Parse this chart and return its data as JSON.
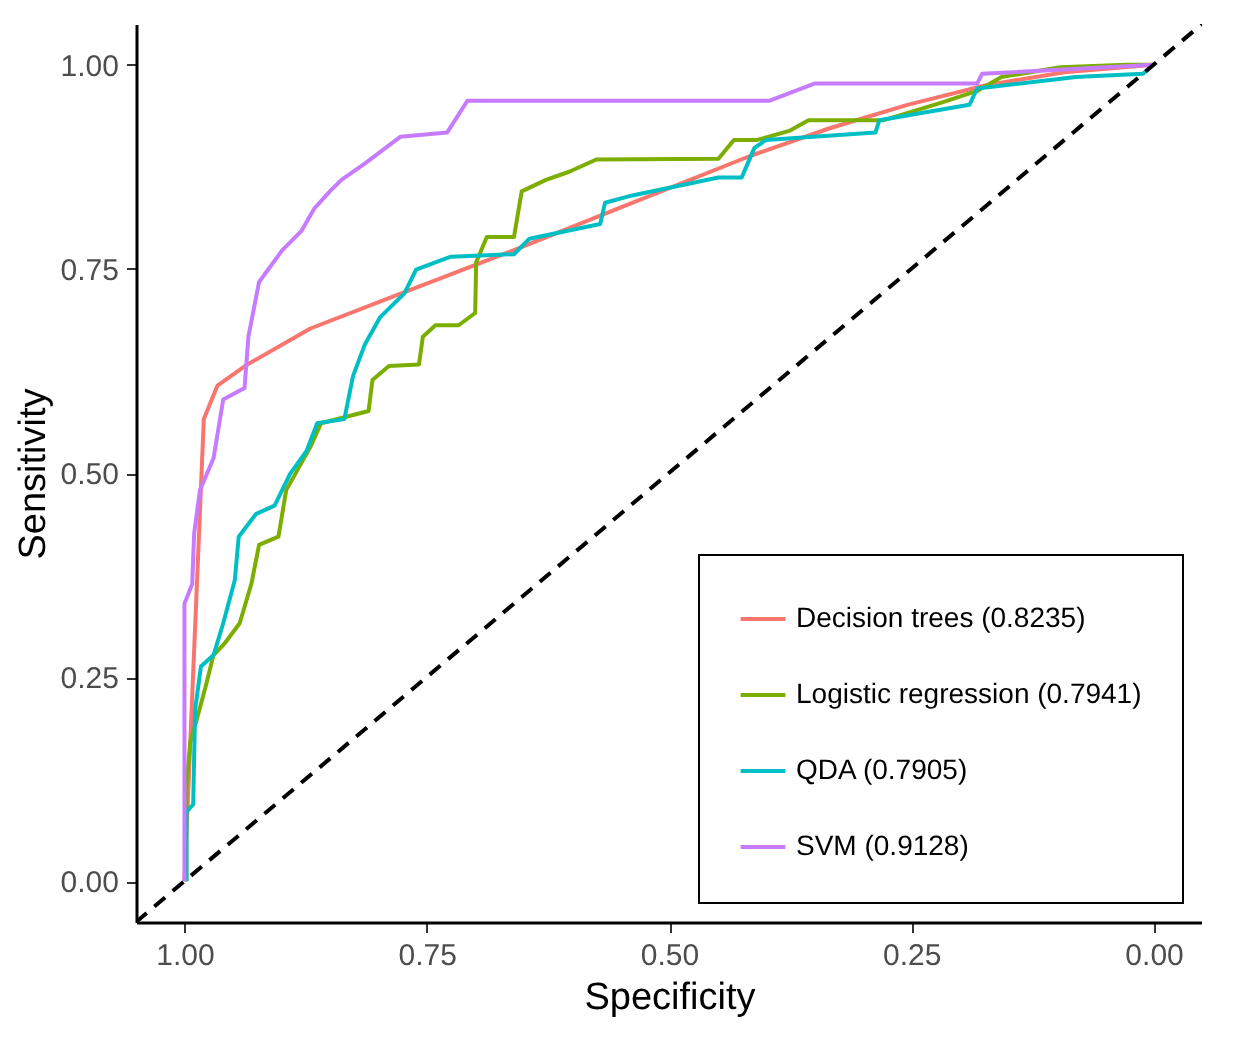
{
  "chart_data": {
    "type": "line",
    "xlabel": "Specificity",
    "ylabel": "Sensitivity",
    "xlim": [
      1.05,
      -0.05
    ],
    "ylim": [
      -0.05,
      1.05
    ],
    "xticks": [
      {
        "value": 1,
        "label": "1.00"
      },
      {
        "value": 0.75,
        "label": "0.75"
      },
      {
        "value": 0.5,
        "label": "0.50"
      },
      {
        "value": 0.25,
        "label": "0.25"
      },
      {
        "value": 0,
        "label": "0.00"
      }
    ],
    "yticks": [
      {
        "value": 0,
        "label": "0.00"
      },
      {
        "value": 0.25,
        "label": "0.25"
      },
      {
        "value": 0.5,
        "label": "0.50"
      },
      {
        "value": 0.75,
        "label": "0.75"
      },
      {
        "value": 1,
        "label": "1.00"
      }
    ],
    "grid": false,
    "legend": "bottom right",
    "line_style": "solid",
    "series": [
      {
        "name": "Decision trees (0.8235)",
        "color": "#f8766d",
        "x": [
          1,
          0.98,
          0.966,
          0.935,
          0.87,
          0.781,
          0.66,
          0.538,
          0.417,
          0.335,
          0.254,
          0.173,
          0.092,
          0
        ],
        "values": [
          0,
          0.566,
          0.607,
          0.633,
          0.677,
          0.718,
          0.773,
          0.831,
          0.888,
          0.922,
          0.951,
          0.975,
          0.991,
          1
        ]
      },
      {
        "name": "Logistic regression (0.7941)",
        "color": "#7cae00",
        "x": [
          0.998,
          0.998,
          0.994,
          0.988,
          0.978,
          0.97,
          0.958,
          0.943,
          0.931,
          0.923,
          0.903,
          0.895,
          0.87,
          0.859,
          0.81,
          0.806,
          0.789,
          0.758,
          0.754,
          0.741,
          0.717,
          0.7,
          0.699,
          0.688,
          0.66,
          0.652,
          0.627,
          0.603,
          0.575,
          0.449,
          0.433,
          0.409,
          0.376,
          0.356,
          0.279,
          0.218,
          0.182,
          0.157,
          0.096,
          0.028,
          0
        ],
        "values": [
          0,
          0.114,
          0.171,
          0.195,
          0.239,
          0.277,
          0.292,
          0.316,
          0.364,
          0.412,
          0.422,
          0.479,
          0.532,
          0.561,
          0.576,
          0.614,
          0.631,
          0.633,
          0.667,
          0.681,
          0.681,
          0.696,
          0.758,
          0.789,
          0.789,
          0.845,
          0.859,
          0.869,
          0.884,
          0.885,
          0.908,
          0.908,
          0.919,
          0.932,
          0.932,
          0.954,
          0.968,
          0.985,
          0.997,
          1,
          1
        ]
      },
      {
        "name": "QDA (0.7905)",
        "color": "#00bfc4",
        "x": [
          0.998,
          0.998,
          0.991,
          0.989,
          0.983,
          0.97,
          0.96,
          0.948,
          0.944,
          0.926,
          0.907,
          0.891,
          0.874,
          0.863,
          0.835,
          0.826,
          0.814,
          0.798,
          0.773,
          0.761,
          0.741,
          0.725,
          0.66,
          0.644,
          0.571,
          0.566,
          0.538,
          0.449,
          0.425,
          0.412,
          0.4,
          0.287,
          0.283,
          0.19,
          0.182,
          0.08,
          0.011,
          0
        ],
        "values": [
          0,
          0.085,
          0.094,
          0.21,
          0.263,
          0.277,
          0.316,
          0.369,
          0.422,
          0.45,
          0.46,
          0.499,
          0.527,
          0.561,
          0.566,
          0.619,
          0.657,
          0.691,
          0.72,
          0.749,
          0.758,
          0.765,
          0.768,
          0.787,
          0.805,
          0.831,
          0.84,
          0.862,
          0.862,
          0.898,
          0.908,
          0.917,
          0.932,
          0.951,
          0.971,
          0.985,
          0.989,
          1
        ]
      },
      {
        "name": "SVM (0.9128)",
        "color": "#c77cff",
        "x": [
          1,
          1,
          0.992,
          0.99,
          0.984,
          0.97,
          0.96,
          0.938,
          0.934,
          0.923,
          0.899,
          0.879,
          0.866,
          0.85,
          0.838,
          0.814,
          0.777,
          0.729,
          0.708,
          0.396,
          0.35,
          0.182,
          0.177,
          0
        ],
        "values": [
          0,
          0.34,
          0.364,
          0.426,
          0.479,
          0.518,
          0.59,
          0.604,
          0.667,
          0.734,
          0.773,
          0.797,
          0.824,
          0.845,
          0.859,
          0.879,
          0.912,
          0.917,
          0.956,
          0.956,
          0.977,
          0.977,
          0.989,
          1
        ]
      },
      {
        "color": "#000000",
        "line_style": "dashed",
        "x": [
          1.05,
          -0.05
        ],
        "values": [
          -0.05,
          1.05
        ]
      }
    ]
  }
}
